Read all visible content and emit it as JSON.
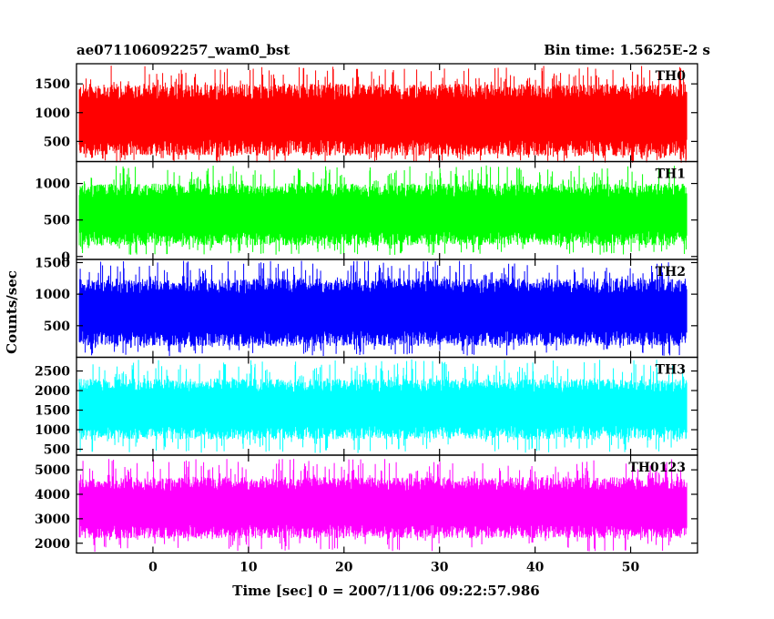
{
  "header": {
    "left_title": "ae071106092257_wam0_bst",
    "right_title": "Bin time: 1.5625E-2 s"
  },
  "chart_data": {
    "type": "line",
    "xlabel": "Time [sec] 0 = 2007/11/06 09:22:57.986",
    "ylabel": "Counts/sec",
    "xlim": [
      -8,
      57
    ],
    "x_range": [
      -7.7,
      55.9
    ],
    "x_ticks": [
      0,
      10,
      20,
      30,
      40,
      50
    ],
    "x_tick_labels": [
      "0",
      "10",
      "20",
      "30",
      "40",
      "50"
    ],
    "bin_time": 0.015625,
    "panels": [
      {
        "name": "TH0",
        "color": "#ff0000",
        "ylim": [
          150,
          1850
        ],
        "y_ticks": [
          500,
          1000,
          1500
        ],
        "y_tick_labels": [
          "500",
          "1000",
          "1500"
        ],
        "mean": 870,
        "typical_min": 250,
        "typical_max": 1500,
        "spike_min": 130,
        "spike_max": 1820
      },
      {
        "name": "TH1",
        "color": "#00ff00",
        "ylim": [
          -40,
          1300
        ],
        "y_ticks": [
          0,
          500,
          1000
        ],
        "y_tick_labels": [
          "0",
          "500",
          "1000"
        ],
        "mean": 590,
        "typical_min": 150,
        "typical_max": 1000,
        "spike_min": 20,
        "spike_max": 1250
      },
      {
        "name": "TH2",
        "color": "#0000ff",
        "ylim": [
          0,
          1550
        ],
        "y_ticks": [
          500,
          1000,
          1500
        ],
        "y_tick_labels": [
          "500",
          "1000",
          "1500"
        ],
        "mean": 710,
        "typical_min": 180,
        "typical_max": 1250,
        "spike_min": 20,
        "spike_max": 1530
      },
      {
        "name": "TH3",
        "color": "#00ffff",
        "ylim": [
          350,
          2850
        ],
        "y_ticks": [
          500,
          1000,
          1500,
          2000,
          2500
        ],
        "y_tick_labels": [
          "500",
          "1000",
          "1500",
          "2000",
          "2500"
        ],
        "mean": 1550,
        "typical_min": 750,
        "typical_max": 2300,
        "spike_min": 400,
        "spike_max": 2800
      },
      {
        "name": "TH0123",
        "color": "#ff00ff",
        "ylim": [
          1600,
          5600
        ],
        "y_ticks": [
          2000,
          3000,
          4000,
          5000
        ],
        "y_tick_labels": [
          "2000",
          "3000",
          "4000",
          "5000"
        ],
        "mean": 3450,
        "typical_min": 2200,
        "typical_max": 4700,
        "spike_min": 1650,
        "spike_max": 5450
      }
    ]
  }
}
